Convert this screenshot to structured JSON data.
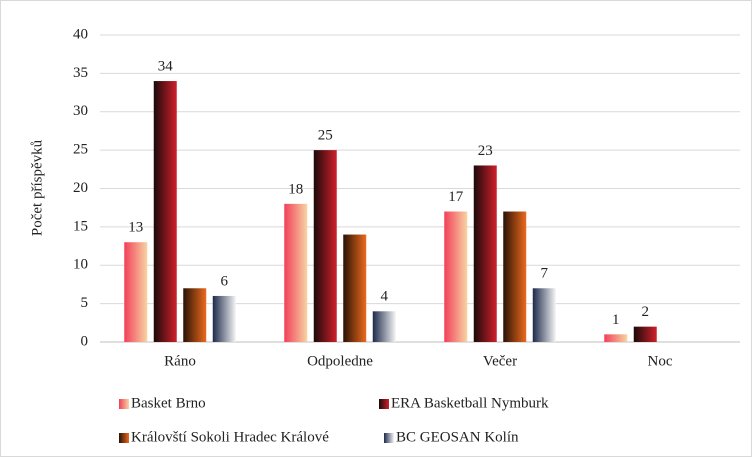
{
  "chart_data": {
    "type": "bar",
    "y_label": "Počet příspěvků",
    "categories": [
      "Ráno",
      "Odpoledne",
      "Večer",
      "Noc"
    ],
    "series": [
      {
        "name": "Basket Brno",
        "colors": [
          "#f2405a",
          "#f7d4a2"
        ],
        "values": [
          13,
          18,
          17,
          1
        ],
        "show_labels": true
      },
      {
        "name": "ERA Basketball Nymburk",
        "colors": [
          "#1a0a0a",
          "#d0202a"
        ],
        "values": [
          34,
          25,
          23,
          2
        ],
        "show_labels": true
      },
      {
        "name": "Královští Sokoli Hradec Králové",
        "colors": [
          "#2a1205",
          "#ec6a1e"
        ],
        "values": [
          7,
          14,
          17,
          null
        ],
        "show_labels": false
      },
      {
        "name": "BC GEOSAN Kolín",
        "colors": [
          "#1c2a4a",
          "#f4f4f4"
        ],
        "values": [
          6,
          4,
          7,
          null
        ],
        "show_labels": true
      }
    ],
    "ylim": [
      0,
      40
    ],
    "yticks": [
      0,
      5,
      10,
      15,
      20,
      25,
      30,
      35,
      40
    ],
    "grid": true
  }
}
